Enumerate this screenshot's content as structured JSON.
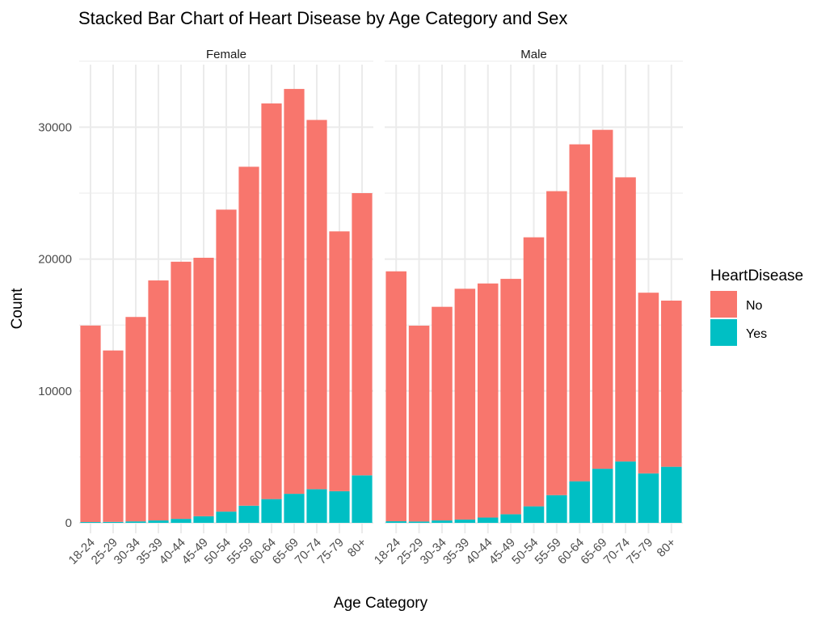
{
  "chart_data": {
    "type": "bar",
    "stacked": true,
    "title": "Stacked Bar Chart of Heart Disease by Age Category and Sex",
    "xlabel": "Age Category",
    "ylabel": "Count",
    "ylim": [
      0,
      35000
    ],
    "yticks": [
      0,
      10000,
      20000,
      30000
    ],
    "grid": true,
    "categories": [
      "18-24",
      "25-29",
      "30-34",
      "35-39",
      "40-44",
      "45-49",
      "50-54",
      "55-59",
      "60-64",
      "65-69",
      "70-74",
      "75-79",
      "80+"
    ],
    "legend": {
      "title": "HeartDisease",
      "position": "right",
      "items": [
        {
          "label": "No",
          "color": "#F8766D"
        },
        {
          "label": "Yes",
          "color": "#00BFC4"
        }
      ]
    },
    "facets": [
      {
        "label": "Female",
        "series": [
          {
            "name": "No",
            "color": "#F8766D",
            "values": [
              14900,
              13000,
              15500,
              18200,
              19500,
              19600,
              22900,
              25700,
              30000,
              30700,
              28000,
              19700,
              21400
            ]
          },
          {
            "name": "Yes",
            "color": "#00BFC4",
            "values": [
              60,
              70,
              110,
              180,
              300,
              500,
              850,
              1300,
              1800,
              2200,
              2550,
              2400,
              3600
            ]
          }
        ]
      },
      {
        "label": "Male",
        "series": [
          {
            "name": "No",
            "color": "#F8766D",
            "values": [
              18950,
              14850,
              16200,
              17500,
              17750,
              17850,
              20400,
              23050,
              25550,
              25700,
              21550,
              13700,
              12600
            ]
          },
          {
            "name": "Yes",
            "color": "#00BFC4",
            "values": [
              120,
              100,
              180,
              250,
              400,
              650,
              1250,
              2100,
              3150,
              4100,
              4650,
              3750,
              4250
            ]
          }
        ]
      }
    ]
  }
}
